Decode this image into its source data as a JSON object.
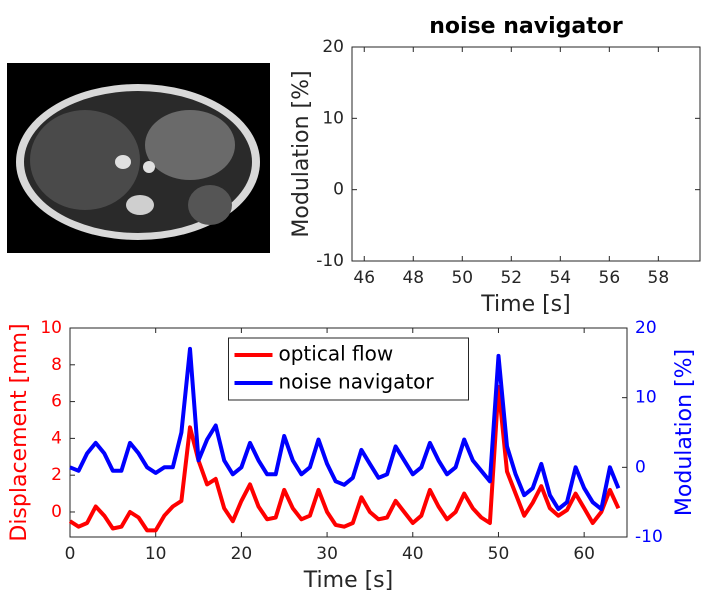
{
  "chart_data": [
    {
      "type": "line",
      "title": "noise navigator",
      "xlabel": "Time [s]",
      "ylabel": "Modulation [%]",
      "xlim": [
        45.5,
        59.7
      ],
      "xticks": [
        46,
        48,
        50,
        52,
        54,
        56,
        58
      ],
      "ylim": [
        -10,
        20
      ],
      "yticks": [
        -10,
        0,
        10,
        20
      ]
    },
    {
      "type": "line",
      "xlabel": "Time [s]",
      "ylabel": "Displacement [mm]",
      "y2label": "Modulation [%]",
      "x": [
        0,
        1,
        2,
        3,
        4,
        5,
        6,
        7,
        8,
        9,
        10,
        11,
        12,
        13,
        14,
        15,
        16,
        17,
        18,
        19,
        20,
        21,
        22,
        23,
        24,
        25,
        26,
        27,
        28,
        29,
        30,
        31,
        32,
        33,
        34,
        35,
        36,
        37,
        38,
        39,
        40,
        41,
        42,
        43,
        44,
        45,
        46,
        47,
        48,
        49,
        50,
        51,
        52,
        53,
        54,
        55,
        56,
        57,
        58,
        59,
        60,
        61,
        62,
        63,
        64
      ],
      "xlim": [
        0,
        65
      ],
      "xticks": [
        0,
        10,
        20,
        30,
        40,
        50,
        60
      ],
      "ylim": [
        -1.36,
        10
      ],
      "yticks": [
        0,
        2,
        4,
        6,
        8,
        10
      ],
      "y2lim": [
        -10,
        20
      ],
      "y2ticks": [
        -10,
        0,
        10,
        20
      ],
      "legend": "upper center",
      "series": [
        {
          "name": "optical flow",
          "color": "#ff0000",
          "values": [
            -0.5,
            -0.8,
            -0.6,
            0.3,
            -0.2,
            -0.9,
            -0.8,
            0.0,
            -0.3,
            -1.0,
            -1.0,
            -0.2,
            0.3,
            0.6,
            4.6,
            2.8,
            1.5,
            1.8,
            0.2,
            -0.5,
            0.6,
            1.5,
            0.3,
            -0.4,
            -0.3,
            1.2,
            0.2,
            -0.4,
            -0.2,
            1.2,
            0.0,
            -0.7,
            -0.8,
            -0.6,
            0.8,
            0.0,
            -0.4,
            -0.3,
            0.6,
            0.0,
            -0.6,
            -0.2,
            1.2,
            0.3,
            -0.4,
            0.0,
            1.0,
            0.2,
            -0.3,
            -0.6,
            6.8,
            2.2,
            1.0,
            -0.2,
            0.5,
            1.4,
            0.2,
            -0.2,
            0.1,
            1.0,
            0.2,
            -0.6,
            0.0,
            1.2,
            0.2
          ]
        },
        {
          "name": "noise navigator",
          "color": "#0000ff",
          "axis": "y2",
          "values": [
            0,
            -0.5,
            2,
            3.5,
            2,
            -0.5,
            -0.5,
            3.5,
            2,
            0,
            -0.8,
            0,
            0,
            5,
            17,
            1,
            4,
            6,
            1,
            -1,
            0,
            3.5,
            1,
            -1,
            -1,
            4.5,
            1,
            -1,
            0,
            4,
            0.5,
            -2,
            -2.5,
            -1.5,
            2.5,
            0.5,
            -1.5,
            -1,
            3,
            1,
            -1,
            0,
            3.5,
            1,
            -1,
            0,
            4,
            1,
            -0.5,
            -2,
            16,
            3,
            -1,
            -4,
            -3,
            0.5,
            -4,
            -6,
            -5,
            0,
            -3,
            -5,
            -6,
            0,
            -3
          ]
        }
      ]
    }
  ]
}
